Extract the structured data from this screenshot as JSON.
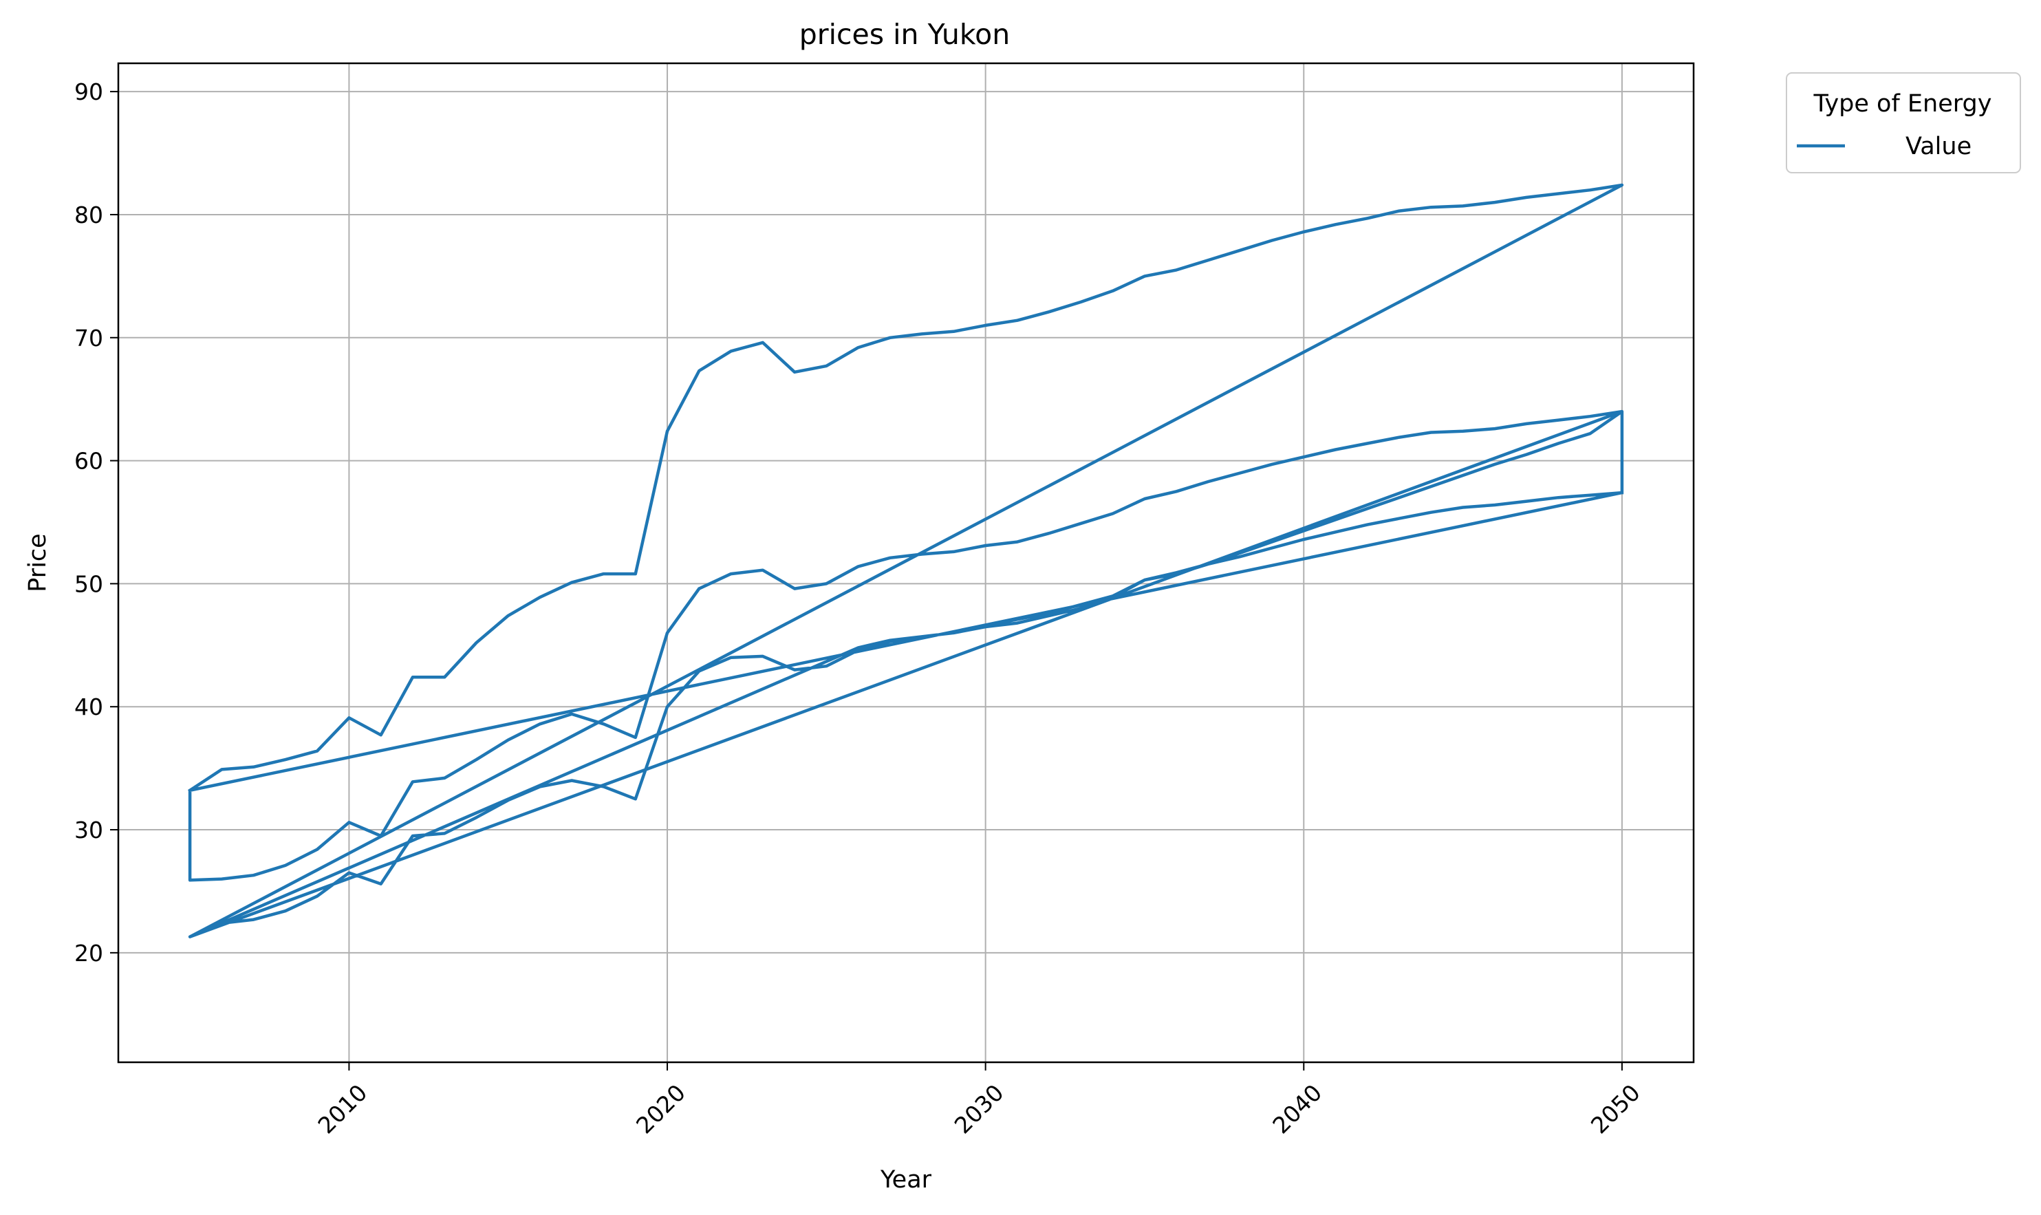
{
  "chart_data": {
    "type": "line",
    "title": "prices in Yukon",
    "xlabel": "Year",
    "ylabel": "Price",
    "xlim": [
      2002.75,
      2052.25
    ],
    "ylim": [
      11.1,
      92.3
    ],
    "xticks": [
      2010,
      2020,
      2030,
      2040,
      2050
    ],
    "yticks": [
      20,
      30,
      40,
      50,
      60,
      70,
      80,
      90
    ],
    "grid": true,
    "legend": {
      "title": "Type of Energy",
      "placement": "outside-top-right",
      "entries": [
        "Value"
      ]
    },
    "series_color": "#1f77b4",
    "series": [
      {
        "name": "Value",
        "points": [
          [
            2005,
            33.2
          ],
          [
            2006,
            34.9
          ],
          [
            2007,
            35.1
          ],
          [
            2008,
            35.7
          ],
          [
            2009,
            36.4
          ],
          [
            2010,
            39.1
          ],
          [
            2011,
            37.7
          ],
          [
            2012,
            42.4
          ],
          [
            2013,
            42.4
          ],
          [
            2014,
            45.2
          ],
          [
            2015,
            47.4
          ],
          [
            2016,
            48.9
          ],
          [
            2017,
            50.1
          ],
          [
            2018,
            50.8
          ],
          [
            2019,
            50.8
          ],
          [
            2020,
            62.4
          ],
          [
            2021,
            67.3
          ],
          [
            2022,
            68.9
          ],
          [
            2023,
            69.6
          ],
          [
            2024,
            67.2
          ],
          [
            2025,
            67.7
          ],
          [
            2026,
            69.2
          ],
          [
            2027,
            70.0
          ],
          [
            2028,
            70.3
          ],
          [
            2029,
            70.5
          ],
          [
            2030,
            71.0
          ],
          [
            2031,
            71.4
          ],
          [
            2032,
            72.1
          ],
          [
            2033,
            72.9
          ],
          [
            2034,
            73.8
          ],
          [
            2035,
            75.0
          ],
          [
            2036,
            75.5
          ],
          [
            2037,
            76.3
          ],
          [
            2038,
            77.1
          ],
          [
            2039,
            77.9
          ],
          [
            2040,
            78.6
          ],
          [
            2041,
            79.2
          ],
          [
            2042,
            79.7
          ],
          [
            2043,
            80.3
          ],
          [
            2044,
            80.6
          ],
          [
            2045,
            80.7
          ],
          [
            2046,
            81.0
          ],
          [
            2047,
            81.4
          ],
          [
            2048,
            81.7
          ],
          [
            2049,
            82.0
          ],
          [
            2050,
            82.4
          ],
          [
            2005,
            21.3
          ],
          [
            2006,
            22.4
          ],
          [
            2007,
            22.7
          ],
          [
            2008,
            23.4
          ],
          [
            2009,
            24.6
          ],
          [
            2010,
            26.5
          ],
          [
            2011,
            25.6
          ],
          [
            2012,
            29.5
          ],
          [
            2013,
            29.7
          ],
          [
            2014,
            31.0
          ],
          [
            2015,
            32.4
          ],
          [
            2016,
            33.5
          ],
          [
            2017,
            34.0
          ],
          [
            2018,
            33.5
          ],
          [
            2019,
            32.5
          ],
          [
            2020,
            40.0
          ],
          [
            2021,
            42.9
          ],
          [
            2022,
            44.0
          ],
          [
            2023,
            44.1
          ],
          [
            2024,
            43.0
          ],
          [
            2025,
            43.3
          ],
          [
            2026,
            44.6
          ],
          [
            2027,
            45.3
          ],
          [
            2028,
            45.7
          ],
          [
            2029,
            46.0
          ],
          [
            2030,
            46.5
          ],
          [
            2031,
            46.8
          ],
          [
            2032,
            47.4
          ],
          [
            2033,
            48.0
          ],
          [
            2034,
            48.9
          ],
          [
            2035,
            50.3
          ],
          [
            2036,
            50.8
          ],
          [
            2037,
            51.6
          ],
          [
            2038,
            52.5
          ],
          [
            2039,
            53.4
          ],
          [
            2040,
            54.3
          ],
          [
            2041,
            55.2
          ],
          [
            2042,
            56.1
          ],
          [
            2043,
            57.0
          ],
          [
            2044,
            57.9
          ],
          [
            2045,
            58.8
          ],
          [
            2046,
            59.7
          ],
          [
            2047,
            60.5
          ],
          [
            2048,
            61.4
          ],
          [
            2049,
            62.2
          ],
          [
            2050,
            64.0
          ],
          [
            2049,
            63.6
          ],
          [
            2048,
            63.3
          ],
          [
            2047,
            63.0
          ],
          [
            2046,
            62.6
          ],
          [
            2045,
            62.4
          ],
          [
            2044,
            62.3
          ],
          [
            2043,
            61.9
          ],
          [
            2042,
            61.4
          ],
          [
            2041,
            60.9
          ],
          [
            2040,
            60.3
          ],
          [
            2039,
            59.7
          ],
          [
            2038,
            59.0
          ],
          [
            2037,
            58.3
          ],
          [
            2036,
            57.5
          ],
          [
            2035,
            56.9
          ],
          [
            2034,
            55.7
          ],
          [
            2033,
            54.9
          ],
          [
            2032,
            54.1
          ],
          [
            2031,
            53.4
          ],
          [
            2030,
            53.1
          ],
          [
            2029,
            52.6
          ],
          [
            2028,
            52.4
          ],
          [
            2027,
            52.1
          ],
          [
            2026,
            51.4
          ],
          [
            2025,
            50.0
          ],
          [
            2024,
            49.6
          ],
          [
            2023,
            51.1
          ],
          [
            2022,
            50.8
          ],
          [
            2021,
            49.6
          ],
          [
            2020,
            46.0
          ],
          [
            2019,
            37.5
          ],
          [
            2018,
            38.6
          ],
          [
            2017,
            39.4
          ],
          [
            2016,
            38.6
          ],
          [
            2015,
            37.3
          ],
          [
            2014,
            35.7
          ],
          [
            2013,
            34.2
          ],
          [
            2012,
            33.9
          ],
          [
            2011,
            29.5
          ],
          [
            2010,
            30.6
          ],
          [
            2009,
            28.4
          ],
          [
            2008,
            27.1
          ],
          [
            2007,
            26.3
          ],
          [
            2006,
            26.0
          ],
          [
            2005,
            25.9
          ],
          [
            2005,
            33.2
          ],
          [
            2050,
            57.4
          ],
          [
            2049,
            57.2
          ],
          [
            2048,
            57.0
          ],
          [
            2047,
            56.7
          ],
          [
            2046,
            56.4
          ],
          [
            2045,
            56.2
          ],
          [
            2044,
            55.8
          ],
          [
            2043,
            55.3
          ],
          [
            2042,
            54.8
          ],
          [
            2041,
            54.2
          ],
          [
            2040,
            53.6
          ],
          [
            2039,
            52.9
          ],
          [
            2038,
            52.2
          ],
          [
            2037,
            51.6
          ],
          [
            2036,
            50.9
          ],
          [
            2035,
            50.3
          ],
          [
            2034,
            49.0
          ],
          [
            2033,
            48.3
          ],
          [
            2032,
            47.6
          ],
          [
            2031,
            47.1
          ],
          [
            2030,
            46.6
          ],
          [
            2029,
            46.0
          ],
          [
            2028,
            45.7
          ],
          [
            2027,
            45.4
          ],
          [
            2026,
            44.8
          ],
          [
            2005,
            21.3
          ],
          [
            2050,
            64.0
          ],
          [
            2050,
            57.4
          ]
        ]
      }
    ]
  }
}
